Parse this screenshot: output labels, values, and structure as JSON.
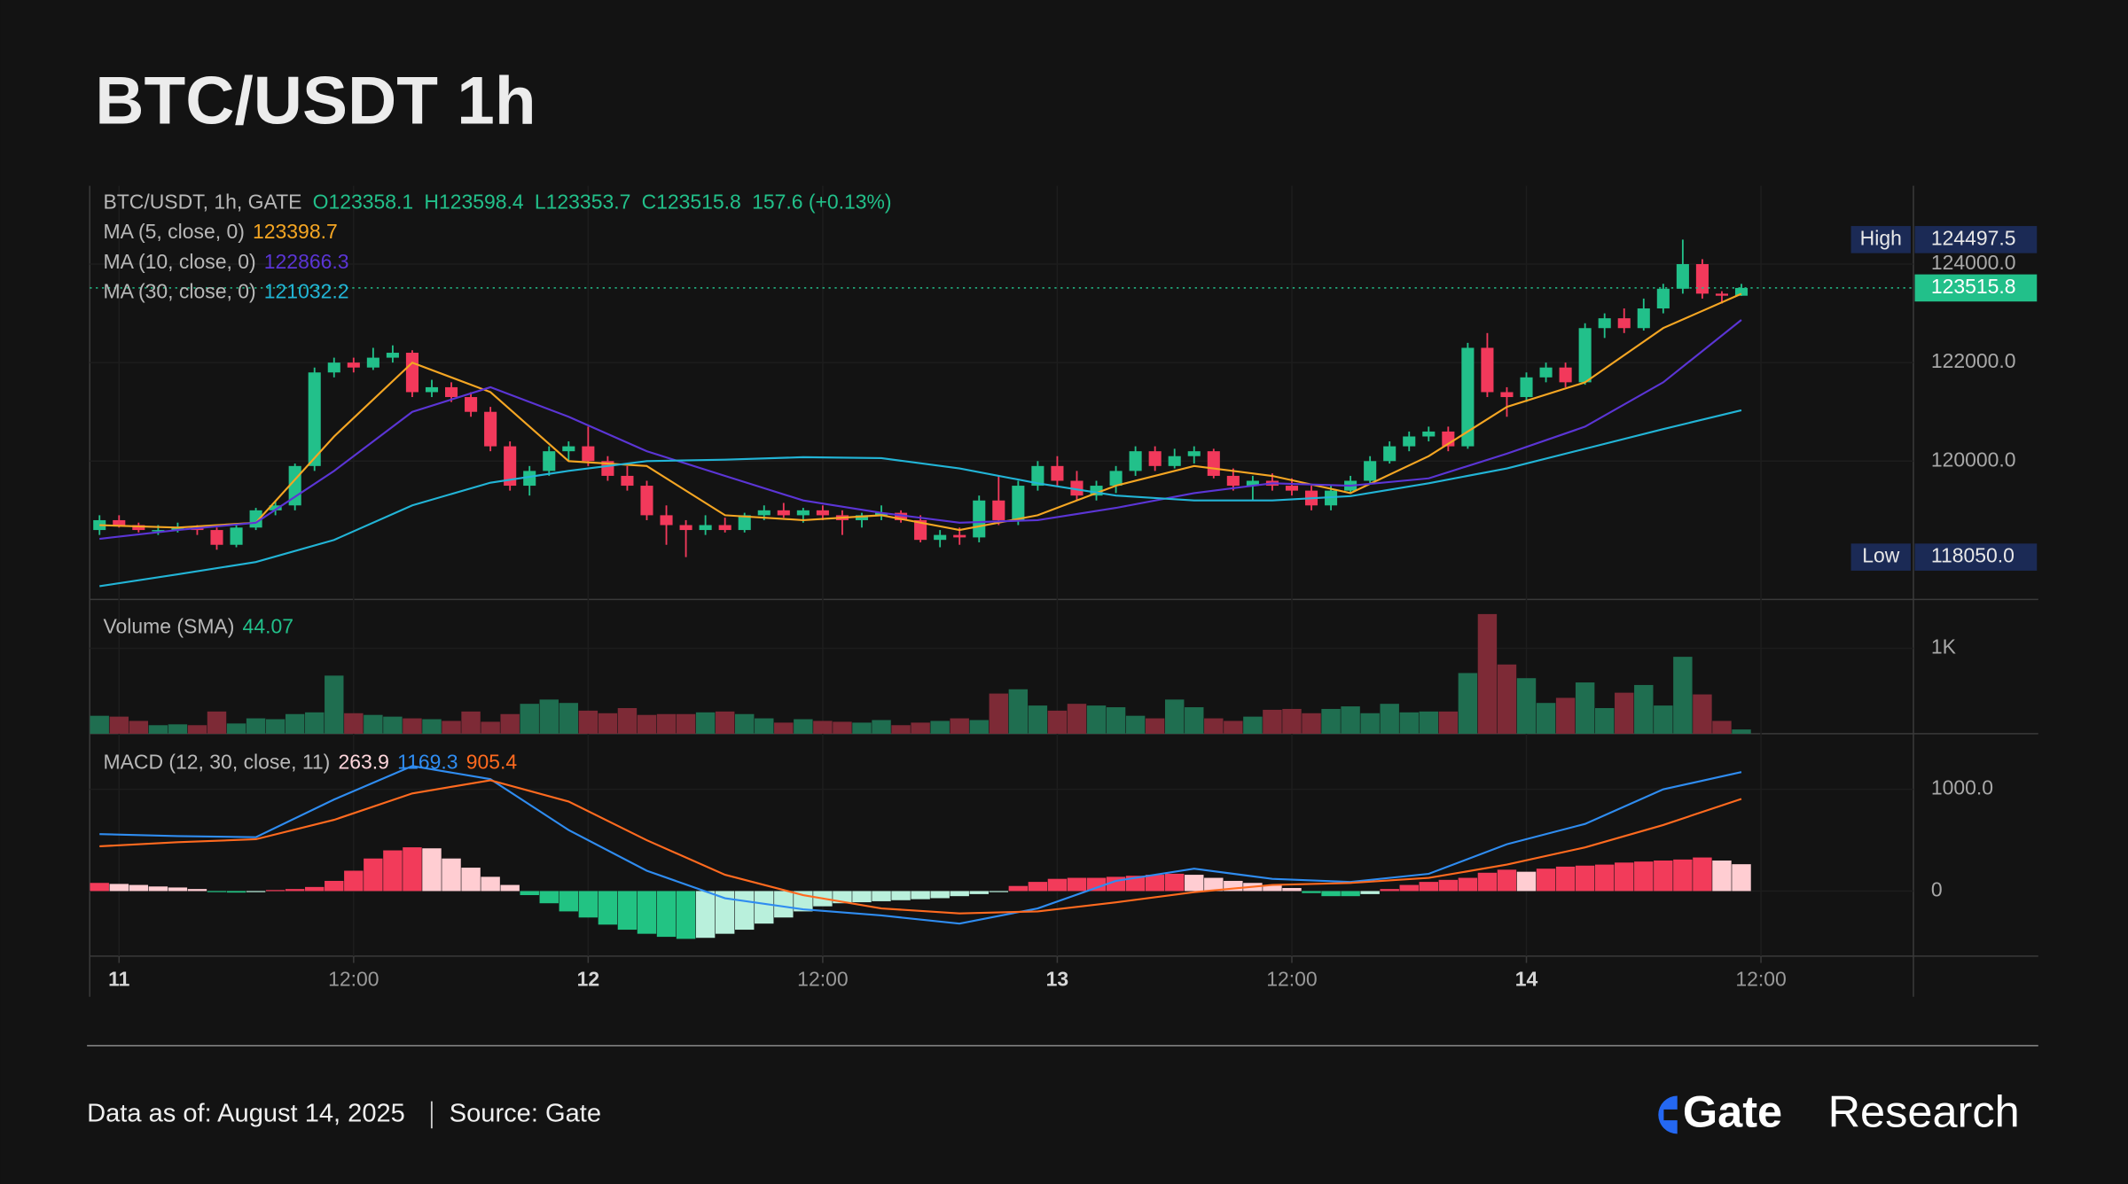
{
  "header": {
    "title": "BTC/USDT 1h"
  },
  "footer": {
    "date": "Data as of: August 14, 2025",
    "source": "Source: Gate",
    "brand": "Gate",
    "brand_suffix": "Research"
  },
  "chart_data": [
    {
      "type": "candlestick",
      "legend_title": "BTC/USDT, 1h, GATE",
      "ohlc_labels": [
        "O123358.1",
        "H123598.4",
        "L123353.7",
        "C123515.8",
        "157.6 (+0.13%)"
      ],
      "up_color": "#22c08a",
      "down_color": "#f2395b",
      "candles": {
        "open": [
          118600,
          118800,
          118700,
          118600,
          118600,
          118650,
          118600,
          118300,
          118650,
          119000,
          119100,
          119900,
          121800,
          122000,
          121900,
          122100,
          122200,
          121400,
          121500,
          121300,
          121000,
          120300,
          119500,
          119800,
          120200,
          120300,
          120000,
          119700,
          119500,
          118900,
          118700,
          118600,
          118700,
          118600,
          118900,
          119000,
          118900,
          119000,
          118900,
          118800,
          118900,
          118950,
          118800,
          118400,
          118500,
          118450,
          119200,
          118800,
          119500,
          119900,
          119600,
          119300,
          119500,
          119800,
          120200,
          119900,
          120100,
          120200,
          119700,
          119500,
          119600,
          119500,
          119400,
          119100,
          119400,
          119600,
          120000,
          120300,
          120500,
          120600,
          120300,
          122300,
          121400,
          121300,
          121700,
          121900,
          121600,
          122700,
          122900,
          122700,
          123100,
          123500,
          124000,
          123400,
          123358.1
        ],
        "high": [
          118900,
          118900,
          118750,
          118700,
          118750,
          118700,
          118650,
          118700,
          119050,
          119200,
          119950,
          121900,
          122100,
          122100,
          122300,
          122350,
          122250,
          121650,
          121600,
          121400,
          121100,
          120400,
          119900,
          120300,
          120400,
          120700,
          120100,
          119900,
          119600,
          119100,
          118800,
          118900,
          118850,
          118950,
          119100,
          119150,
          119050,
          119100,
          119000,
          118950,
          119100,
          119000,
          118900,
          118600,
          118650,
          119300,
          119700,
          119600,
          120000,
          120100,
          119800,
          119600,
          119900,
          120300,
          120300,
          120250,
          120300,
          120250,
          119850,
          119700,
          119750,
          119650,
          119500,
          119500,
          119700,
          120100,
          120400,
          120600,
          120700,
          120700,
          122400,
          122600,
          121500,
          121800,
          122000,
          122000,
          122800,
          123000,
          123100,
          123300,
          123600,
          124497.5,
          124100,
          123450,
          123598.4
        ],
        "low": [
          118500,
          118650,
          118550,
          118500,
          118550,
          118500,
          118200,
          118250,
          118600,
          118900,
          119000,
          119800,
          121700,
          121800,
          121850,
          122000,
          121300,
          121300,
          121200,
          120900,
          120200,
          119400,
          119300,
          119700,
          120000,
          119900,
          119600,
          119400,
          118800,
          118300,
          118050,
          118500,
          118550,
          118550,
          118800,
          118850,
          118750,
          118800,
          118500,
          118650,
          118800,
          118750,
          118350,
          118250,
          118300,
          118350,
          118700,
          118700,
          119400,
          119500,
          119200,
          119200,
          119350,
          119700,
          119800,
          119850,
          119950,
          119650,
          119400,
          119200,
          119400,
          119300,
          119000,
          119000,
          119350,
          119550,
          119950,
          120200,
          120400,
          120200,
          120250,
          121300,
          120900,
          121200,
          121600,
          121500,
          121550,
          122500,
          122600,
          122650,
          123000,
          123400,
          123300,
          123200,
          123353.7
        ],
        "close": [
          118800,
          118700,
          118600,
          118600,
          118650,
          118600,
          118300,
          118650,
          119000,
          119100,
          119900,
          121800,
          122000,
          121900,
          122100,
          122200,
          121400,
          121500,
          121300,
          121000,
          120300,
          119500,
          119800,
          120200,
          120300,
          120000,
          119700,
          119500,
          118900,
          118700,
          118600,
          118700,
          118600,
          118900,
          119000,
          118900,
          119000,
          118900,
          118800,
          118900,
          118950,
          118800,
          118400,
          118500,
          118450,
          119200,
          118800,
          119500,
          119900,
          119600,
          119300,
          119500,
          119800,
          120200,
          119900,
          120100,
          120200,
          119700,
          119500,
          119600,
          119500,
          119400,
          119100,
          119400,
          119600,
          120000,
          120300,
          120500,
          120600,
          120300,
          122300,
          121400,
          121300,
          121700,
          121900,
          121600,
          122700,
          122900,
          122700,
          123100,
          123500,
          124000,
          123400,
          123358.1,
          123515.8
        ]
      },
      "ma_series": [
        {
          "name": "MA (5, close, 0)",
          "color": "#f5a623",
          "x": [
            0,
            4,
            8,
            12,
            16,
            20,
            24,
            28,
            32,
            36,
            40,
            44,
            48,
            52,
            56,
            60,
            64,
            68,
            72,
            76,
            80,
            84
          ],
          "values": [
            118700,
            118650,
            118750,
            120500,
            122000,
            121400,
            120000,
            119900,
            118900,
            118800,
            118900,
            118600,
            118900,
            119500,
            119900,
            119700,
            119350,
            120100,
            121100,
            121600,
            122700,
            123398.7
          ]
        },
        {
          "name": "MA (10, close, 0)",
          "color": "#5b35d5",
          "x": [
            0,
            4,
            8,
            12,
            16,
            20,
            24,
            28,
            32,
            36,
            40,
            44,
            48,
            52,
            56,
            60,
            64,
            68,
            72,
            76,
            80,
            84
          ],
          "values": [
            118420,
            118600,
            118750,
            119800,
            121000,
            121500,
            120900,
            120200,
            119700,
            119200,
            118950,
            118750,
            118800,
            119050,
            119350,
            119550,
            119500,
            119650,
            120150,
            120700,
            121600,
            122866.3
          ]
        },
        {
          "name": "MA (30, close, 0)",
          "color": "#22b4d6",
          "x": [
            0,
            4,
            8,
            12,
            16,
            20,
            24,
            28,
            32,
            36,
            40,
            44,
            48,
            52,
            56,
            60,
            64,
            68,
            72,
            76,
            80,
            84
          ],
          "values": [
            117460,
            117700,
            117950,
            118400,
            119100,
            119560,
            119800,
            120000,
            120030,
            120080,
            120060,
            119850,
            119550,
            119300,
            119200,
            119200,
            119290,
            119550,
            119850,
            120250,
            120650,
            121032.2
          ]
        }
      ],
      "extremes": [
        {
          "name": "High",
          "value": 124497.5
        },
        {
          "name": "Low",
          "value": 118050,
          "label": "118050.0"
        }
      ],
      "ylim": [
        117190,
        125590
      ],
      "yticks": [
        {
          "value": 120000,
          "label": "120000.0"
        },
        {
          "value": 122000,
          "label": "122000.0"
        },
        {
          "value": 124000,
          "label": "124000.0"
        }
      ],
      "grid": true
    },
    {
      "type": "bar",
      "legend_title": "Volume (SMA)",
      "legend_value": 44.07,
      "up_color": "#1f6e50",
      "down_color": "#7d2a36",
      "values": [
        210,
        200,
        150,
        100,
        110,
        100,
        260,
        120,
        180,
        170,
        230,
        250,
        680,
        240,
        220,
        200,
        180,
        170,
        150,
        260,
        140,
        230,
        350,
        400,
        360,
        270,
        240,
        300,
        220,
        230,
        230,
        250,
        260,
        230,
        180,
        130,
        170,
        150,
        140,
        130,
        160,
        100,
        130,
        150,
        180,
        160,
        470,
        520,
        330,
        270,
        350,
        330,
        310,
        210,
        180,
        400,
        310,
        180,
        150,
        200,
        280,
        290,
        240,
        290,
        320,
        240,
        350,
        250,
        260,
        260,
        710,
        1400,
        810,
        650,
        360,
        420,
        600,
        300,
        480,
        570,
        330,
        900,
        460,
        150,
        50
      ],
      "ylim": [
        0,
        1555
      ],
      "yticks": [
        {
          "value": 1000,
          "label": "1K"
        }
      ]
    },
    {
      "type": "macd",
      "legend_title": "MACD (12, 30, close, 11)",
      "histogram": {
        "colors": {
          "positive_rising": "#f23b5a",
          "positive_falling": "#ffcdd2",
          "negative_falling": "#22c383",
          "negative_rising": "#b9f0dc"
        },
        "values": [
          80,
          70,
          60,
          45,
          35,
          20,
          -10,
          -15,
          -10,
          10,
          20,
          40,
          100,
          200,
          320,
          400,
          430,
          420,
          320,
          230,
          140,
          60,
          -40,
          -120,
          -200,
          -260,
          -330,
          -380,
          -420,
          -450,
          -470,
          -460,
          -420,
          -380,
          -320,
          -260,
          -200,
          -150,
          -120,
          -110,
          -100,
          -90,
          -80,
          -70,
          -50,
          -30,
          -10,
          50,
          90,
          120,
          130,
          130,
          140,
          150,
          160,
          170,
          160,
          130,
          100,
          80,
          60,
          30,
          -20,
          -50,
          -50,
          -30,
          20,
          60,
          90,
          110,
          130,
          180,
          210,
          190,
          220,
          240,
          250,
          260,
          280,
          290,
          300,
          310,
          330,
          300,
          263.9
        ]
      },
      "series": [
        {
          "name": "MACD",
          "color": "#2f8cf0",
          "x": [
            0,
            4,
            8,
            12,
            16,
            20,
            24,
            28,
            32,
            36,
            40,
            44,
            48,
            52,
            56,
            60,
            64,
            68,
            72,
            76,
            80,
            84
          ],
          "values": [
            560,
            540,
            530,
            900,
            1230,
            1100,
            600,
            200,
            -70,
            -180,
            -240,
            -320,
            -170,
            100,
            220,
            120,
            90,
            170,
            460,
            660,
            1000,
            1169.3
          ]
        },
        {
          "name": "Signal",
          "color": "#ff6a1f",
          "x": [
            0,
            4,
            8,
            12,
            16,
            20,
            24,
            28,
            32,
            36,
            40,
            44,
            48,
            52,
            56,
            60,
            64,
            68,
            72,
            76,
            80,
            84
          ],
          "values": [
            440,
            480,
            510,
            700,
            960,
            1090,
            880,
            500,
            160,
            -40,
            -170,
            -220,
            -200,
            -110,
            -10,
            60,
            80,
            130,
            260,
            430,
            650,
            905.4
          ]
        }
      ],
      "ylim": [
        -640,
        1520
      ],
      "yticks": [
        0,
        {
          "value": 1000,
          "label": "1000.0"
        }
      ],
      "xlim": [
        -0.5,
        92.8
      ],
      "xticks": [
        {
          "value": 1,
          "label": "11"
        },
        {
          "value": 13,
          "label": "12:00"
        },
        {
          "value": 25,
          "label": "12"
        },
        {
          "value": 37,
          "label": "12:00"
        },
        {
          "value": 49,
          "label": "13"
        },
        {
          "value": 61,
          "label": "12:00"
        },
        {
          "value": 73,
          "label": "14"
        },
        {
          "value": 85,
          "label": "12:00"
        }
      ]
    }
  ]
}
